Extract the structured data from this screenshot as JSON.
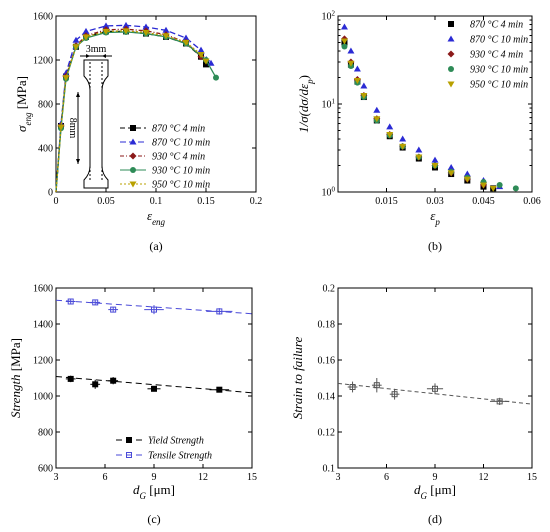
{
  "chart_data": [
    {
      "id": "a",
      "type": "line",
      "panel_label": "(a)",
      "xlabel": "ε",
      "xlabel_sub": "eng",
      "ylabel": "σ",
      "ylabel_sub": "eng",
      "ylabel_unit": " [MPa]",
      "xlim": [
        0,
        0.2
      ],
      "ylim": [
        0,
        1600
      ],
      "xticks": [
        0,
        0.05,
        0.1,
        0.15,
        0.2
      ],
      "xtick_labels": [
        "0",
        "0.05",
        "0.1",
        "0.15",
        "0.2"
      ],
      "yticks": [
        0,
        400,
        800,
        1200,
        1600
      ],
      "ytick_labels": [
        "0",
        "400",
        "800",
        "1200",
        "1600"
      ],
      "legend_position": "bottom-right",
      "inset": {
        "dim_width": "3mm",
        "dim_length": "8mm"
      },
      "series": [
        {
          "name": "870 °C 4 min",
          "color": "#000000",
          "marker": "square",
          "dash": "5,3",
          "x": [
            0,
            0.005,
            0.01,
            0.02,
            0.03,
            0.05,
            0.07,
            0.09,
            0.11,
            0.13,
            0.145,
            0.15
          ],
          "y": [
            0,
            600,
            1050,
            1320,
            1410,
            1460,
            1460,
            1440,
            1410,
            1350,
            1230,
            1160
          ]
        },
        {
          "name": "870 °C 10 min",
          "color": "#2b2bd4",
          "marker": "triangle",
          "dash": "6,3",
          "x": [
            0,
            0.005,
            0.01,
            0.02,
            0.03,
            0.05,
            0.07,
            0.09,
            0.11,
            0.13,
            0.145,
            0.155
          ],
          "y": [
            0,
            620,
            1080,
            1380,
            1460,
            1510,
            1515,
            1500,
            1470,
            1400,
            1290,
            1170
          ]
        },
        {
          "name": "930 °C 4 min",
          "color": "#8b1a1a",
          "marker": "diamond",
          "dash": "4,2,1,2",
          "x": [
            0,
            0.005,
            0.01,
            0.02,
            0.03,
            0.05,
            0.07,
            0.09,
            0.11,
            0.13,
            0.145
          ],
          "y": [
            0,
            600,
            1050,
            1330,
            1420,
            1475,
            1480,
            1465,
            1430,
            1360,
            1230
          ]
        },
        {
          "name": "930 °C 10 min",
          "color": "#2e8b57",
          "marker": "circle",
          "dash": "",
          "x": [
            0,
            0.005,
            0.01,
            0.02,
            0.03,
            0.05,
            0.07,
            0.09,
            0.11,
            0.13,
            0.15,
            0.16
          ],
          "y": [
            0,
            580,
            1030,
            1320,
            1400,
            1450,
            1455,
            1440,
            1410,
            1350,
            1200,
            1040
          ]
        },
        {
          "name": "950 °C 10 min",
          "color": "#b8a000",
          "marker": "triangle-down",
          "dash": "2,2",
          "x": [
            0,
            0.005,
            0.01,
            0.02,
            0.03,
            0.05,
            0.07,
            0.09,
            0.11,
            0.13,
            0.145,
            0.15
          ],
          "y": [
            0,
            590,
            1040,
            1320,
            1410,
            1460,
            1465,
            1450,
            1420,
            1360,
            1250,
            1190
          ]
        }
      ]
    },
    {
      "id": "b",
      "type": "scatter",
      "panel_label": "(b)",
      "xlabel": "ε",
      "xlabel_sub": "p",
      "ylabel": "1/σ(dσ/dε",
      "ylabel_sub": "p",
      "ylabel_unit": ")",
      "xlim": [
        0,
        0.06
      ],
      "ylim": [
        1,
        100
      ],
      "yscale": "log",
      "xticks": [
        0.015,
        0.03,
        0.045,
        0.06
      ],
      "xtick_labels": [
        "0.015",
        "0.03",
        "0.045",
        "0.06"
      ],
      "yticks": [
        1,
        10,
        100
      ],
      "ytick_base": "10",
      "ytick_exp": [
        "0",
        "1",
        "2"
      ],
      "legend_position": "top-right",
      "series": [
        {
          "name": "870 °C 4 min",
          "color": "#000000",
          "marker": "square",
          "x": [
            0.002,
            0.004,
            0.006,
            0.008,
            0.012,
            0.016,
            0.02,
            0.025,
            0.03,
            0.035,
            0.04,
            0.045,
            0.048
          ],
          "y": [
            50,
            28,
            18,
            12,
            6.5,
            4.3,
            3.2,
            2.4,
            1.9,
            1.6,
            1.35,
            1.15,
            1.1
          ]
        },
        {
          "name": "870 °C 10 min",
          "color": "#2b2bd4",
          "marker": "triangle",
          "x": [
            0.002,
            0.004,
            0.006,
            0.008,
            0.012,
            0.016,
            0.02,
            0.025,
            0.03,
            0.035,
            0.04,
            0.045,
            0.05
          ],
          "y": [
            75,
            40,
            25,
            16,
            8.5,
            5.5,
            4.0,
            3.0,
            2.3,
            1.9,
            1.6,
            1.35,
            1.15
          ]
        },
        {
          "name": "930 °C 4 min",
          "color": "#8b1a1a",
          "marker": "diamond",
          "x": [
            0.002,
            0.004,
            0.006,
            0.008,
            0.012,
            0.016,
            0.02,
            0.025,
            0.03,
            0.035,
            0.04,
            0.045
          ],
          "y": [
            55,
            30,
            19,
            12.5,
            6.8,
            4.5,
            3.3,
            2.5,
            2.0,
            1.65,
            1.4,
            1.2
          ]
        },
        {
          "name": "930 °C 10 min",
          "color": "#2e8b57",
          "marker": "circle",
          "x": [
            0.002,
            0.004,
            0.006,
            0.008,
            0.012,
            0.016,
            0.02,
            0.025,
            0.03,
            0.035,
            0.04,
            0.045,
            0.05,
            0.055
          ],
          "y": [
            45,
            27,
            17.5,
            12,
            6.5,
            4.4,
            3.3,
            2.5,
            2.0,
            1.7,
            1.45,
            1.3,
            1.2,
            1.1
          ]
        },
        {
          "name": "950 °C 10 min",
          "color": "#b8a000",
          "marker": "triangle-down",
          "x": [
            0.002,
            0.004,
            0.006,
            0.008,
            0.012,
            0.016,
            0.02,
            0.025,
            0.03,
            0.035,
            0.04,
            0.045,
            0.048
          ],
          "y": [
            52,
            29,
            18.5,
            12.5,
            6.8,
            4.5,
            3.3,
            2.5,
            2.0,
            1.65,
            1.4,
            1.2,
            1.1
          ]
        }
      ]
    },
    {
      "id": "c",
      "type": "scatter",
      "panel_label": "(c)",
      "xlabel": "d",
      "xlabel_sub": "G",
      "xlabel_unit": " [μm]",
      "ylabel": "Strength",
      "ylabel_unit": " [MPa]",
      "xlim": [
        3,
        15
      ],
      "ylim": [
        600,
        1600
      ],
      "xticks": [
        3,
        6,
        9,
        12,
        15
      ],
      "xtick_labels": [
        "3",
        "6",
        "9",
        "12",
        "15"
      ],
      "yticks": [
        600,
        800,
        1000,
        1200,
        1400,
        1600
      ],
      "ytick_labels": [
        "600",
        "800",
        "1000",
        "1200",
        "1400",
        "1600"
      ],
      "legend_position": "bottom-right",
      "series": [
        {
          "name": "Yield Strength",
          "color": "#000000",
          "marker": "square-filled",
          "x": [
            3.9,
            5.4,
            6.5,
            9.0,
            13.0
          ],
          "y": [
            1095,
            1065,
            1085,
            1040,
            1035
          ],
          "xerr": [
            0.3,
            0.3,
            0.3,
            0.4,
            0.6
          ],
          "yerr": [
            18,
            25,
            20,
            12,
            10
          ],
          "fit": [
            [
              3,
              1108
            ],
            [
              15,
              1018
            ]
          ]
        },
        {
          "name": "Tensile Strength",
          "color": "#4a4ad8",
          "marker": "square-open",
          "x": [
            3.9,
            5.4,
            6.5,
            9.0,
            13.0
          ],
          "y": [
            1525,
            1520,
            1480,
            1480,
            1470
          ],
          "xerr": [
            0.3,
            0.3,
            0.3,
            0.6,
            0.8
          ],
          "yerr": [
            15,
            12,
            12,
            25,
            18
          ],
          "fit": [
            [
              3,
              1532
            ],
            [
              15,
              1457
            ]
          ]
        }
      ]
    },
    {
      "id": "d",
      "type": "scatter",
      "panel_label": "(d)",
      "xlabel": "d",
      "xlabel_sub": "G",
      "xlabel_unit": " [μm]",
      "ylabel": "Strain to failure",
      "xlim": [
        3,
        15
      ],
      "ylim": [
        0.1,
        0.2
      ],
      "xticks": [
        3,
        6,
        9,
        12,
        15
      ],
      "xtick_labels": [
        "3",
        "6",
        "9",
        "12",
        "15"
      ],
      "yticks": [
        0.1,
        0.12,
        0.14,
        0.16,
        0.18,
        0.2
      ],
      "ytick_labels": [
        "0.1",
        "0.12",
        "0.14",
        "0.16",
        "0.18",
        "0.2"
      ],
      "series": [
        {
          "color": "#555555",
          "marker": "square-open",
          "x": [
            3.9,
            5.4,
            6.5,
            9.0,
            13.0
          ],
          "y": [
            0.145,
            0.146,
            0.141,
            0.144,
            0.137
          ],
          "xerr": [
            0.3,
            0.3,
            0.3,
            0.5,
            0.6
          ],
          "yerr": [
            0.003,
            0.004,
            0.003,
            0.003,
            0.002
          ],
          "fit": [
            [
              3,
              0.147
            ],
            [
              15,
              0.1355
            ]
          ]
        }
      ]
    }
  ]
}
